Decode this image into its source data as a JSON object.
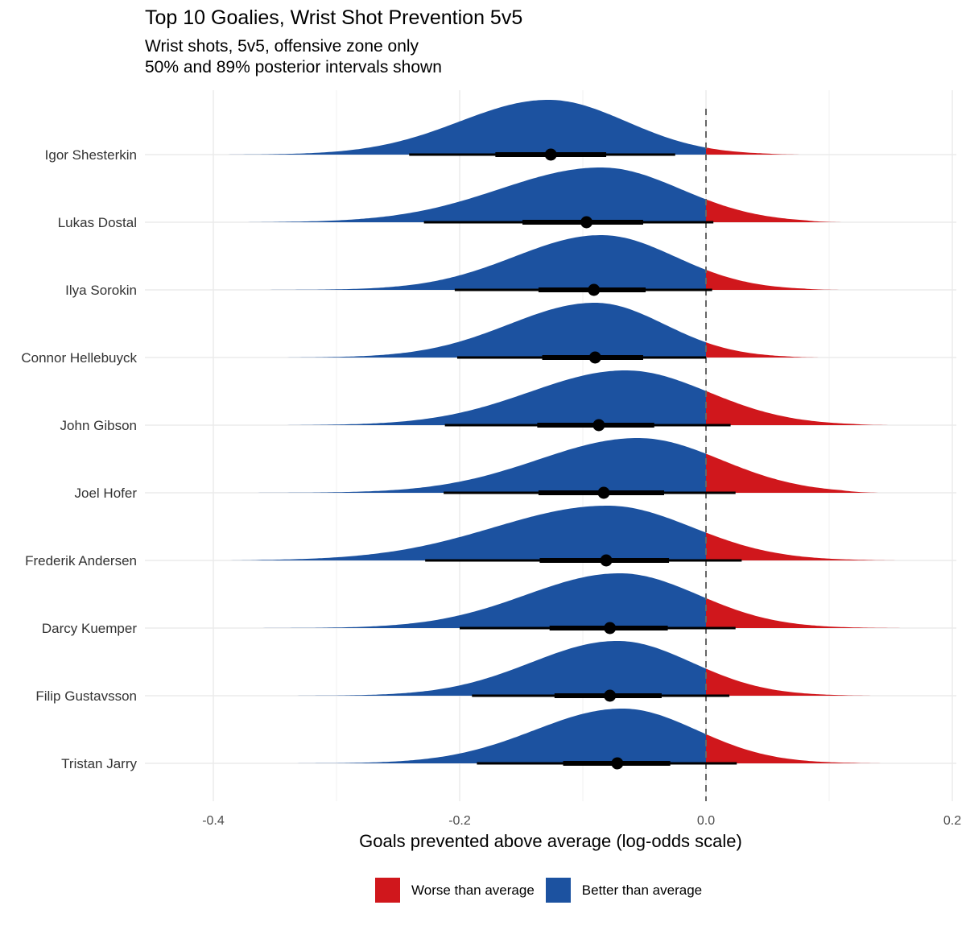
{
  "title": "Top 10 Goalies, Wrist Shot Prevention 5v5",
  "subtitle_lines": [
    "Wrist shots, 5v5, offensive zone only",
    "50% and 89% posterior intervals shown"
  ],
  "legend": [
    {
      "label": "Worse than average",
      "color": "#D0171C"
    },
    {
      "label": "Better than average",
      "color": "#1C52A0"
    }
  ],
  "chart_data": {
    "type": "ridgeline",
    "title": "Top 10 Goalies, Wrist Shot Prevention 5v5",
    "xlabel": "Goals prevented above average (log-odds scale)",
    "ylabel": "",
    "xlim": [
      -0.4,
      0.2
    ],
    "x_ticks": [
      -0.4,
      -0.2,
      0.0,
      0.2
    ],
    "x_tick_labels": [
      "-0.4",
      "-0.2",
      "0.0",
      "0.2"
    ],
    "reference_line": 0.0,
    "fill_rule": "Red where value > 0 (Worse than average); blue where value < 0 (Better than average)",
    "colors": {
      "worse": "#D0171C",
      "better": "#1C52A0"
    },
    "series": [
      {
        "name": "Igor Shesterkin",
        "median": -0.126,
        "i50": [
          -0.171,
          -0.081
        ],
        "i89": [
          -0.241,
          -0.025
        ],
        "tails": [
          -0.4,
          0.08
        ],
        "mode": -0.128
      },
      {
        "name": "Lukas Dostal",
        "median": -0.097,
        "i50": [
          -0.149,
          -0.051
        ],
        "i89": [
          -0.229,
          0.006
        ],
        "tails": [
          -0.38,
          0.11
        ],
        "mode": -0.085
      },
      {
        "name": "Ilya Sorokin",
        "median": -0.091,
        "i50": [
          -0.136,
          -0.049
        ],
        "i89": [
          -0.204,
          0.005
        ],
        "tails": [
          -0.4,
          0.11
        ],
        "mode": -0.085
      },
      {
        "name": "Connor Hellebuyck",
        "median": -0.09,
        "i50": [
          -0.133,
          -0.051
        ],
        "i89": [
          -0.202,
          0.0
        ],
        "tails": [
          -0.35,
          0.095
        ],
        "mode": -0.09
      },
      {
        "name": "John Gibson",
        "median": -0.087,
        "i50": [
          -0.137,
          -0.042
        ],
        "i89": [
          -0.212,
          0.02
        ],
        "tails": [
          -0.35,
          0.15
        ],
        "mode": -0.065
      },
      {
        "name": "Joel Hofer",
        "median": -0.083,
        "i50": [
          -0.136,
          -0.034
        ],
        "i89": [
          -0.213,
          0.024
        ],
        "tails": [
          -0.4,
          0.14
        ],
        "mode": -0.055
      },
      {
        "name": "Frederik Andersen",
        "median": -0.081,
        "i50": [
          -0.135,
          -0.03
        ],
        "i89": [
          -0.228,
          0.029
        ],
        "tails": [
          -0.39,
          0.16
        ],
        "mode": -0.08
      },
      {
        "name": "Darcy Kuemper",
        "median": -0.078,
        "i50": [
          -0.127,
          -0.031
        ],
        "i89": [
          -0.2,
          0.024
        ],
        "tails": [
          -0.42,
          0.17
        ],
        "mode": -0.07
      },
      {
        "name": "Filip Gustavsson",
        "median": -0.078,
        "i50": [
          -0.123,
          -0.036
        ],
        "i89": [
          -0.19,
          0.019
        ],
        "tails": [
          -0.35,
          0.14
        ],
        "mode": -0.072
      },
      {
        "name": "Tristan Jarry",
        "median": -0.072,
        "i50": [
          -0.116,
          -0.029
        ],
        "i89": [
          -0.186,
          0.025
        ],
        "tails": [
          -0.35,
          0.15
        ],
        "mode": -0.068
      }
    ]
  }
}
